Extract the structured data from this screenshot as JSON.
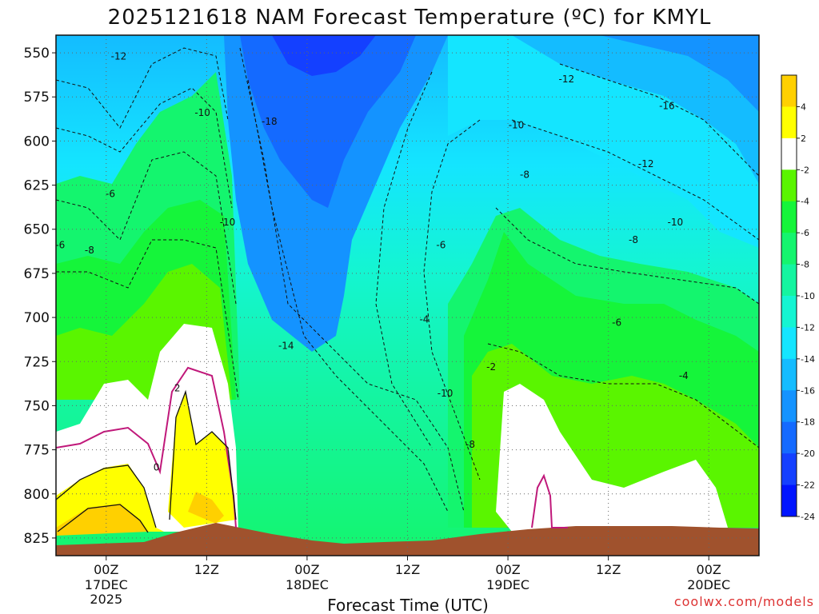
{
  "chart_data": {
    "type": "heatmap",
    "title": "2025121618 NAM Forecast Temperature (ºC) for KMYL",
    "xlabel": "Forecast Time (UTC)",
    "ylabel": "",
    "credit": "coolwx.com/models",
    "y_axis": {
      "ticks": [
        "550",
        "575",
        "600",
        "625",
        "650",
        "675",
        "700",
        "725",
        "750",
        "775",
        "800",
        "825"
      ],
      "range": [
        540,
        835
      ],
      "inverted": true
    },
    "x_axis": {
      "ticks": [
        {
          "label": "00Z",
          "sub1": "17DEC",
          "sub2": "2025"
        },
        {
          "label": "12Z",
          "sub1": "",
          "sub2": ""
        },
        {
          "label": "00Z",
          "sub1": "18DEC",
          "sub2": ""
        },
        {
          "label": "12Z",
          "sub1": "",
          "sub2": ""
        },
        {
          "label": "00Z",
          "sub1": "19DEC",
          "sub2": ""
        },
        {
          "label": "12Z",
          "sub1": "",
          "sub2": ""
        },
        {
          "label": "00Z",
          "sub1": "20DEC",
          "sub2": ""
        }
      ],
      "range_hours": [
        -6,
        78
      ]
    },
    "grid": true,
    "colorbar": {
      "labels": [
        "4",
        "2",
        "-2",
        "-4",
        "-6",
        "-8",
        "-10",
        "-12",
        "-14",
        "-16",
        "-18",
        "-20",
        "-22",
        "-24"
      ],
      "colors": [
        "#ffd000",
        "#ffff00",
        "#ffffff",
        "#5af500",
        "#15f53a",
        "#14f56e",
        "#14f5a0",
        "#14f5d2",
        "#14e5ff",
        "#14bcff",
        "#1493ff",
        "#146aff",
        "#1440ff",
        "#0014ff"
      ]
    },
    "contour_labels": [
      {
        "text": "-12",
        "h": 1.5,
        "p": 552
      },
      {
        "text": "-10",
        "h": 11.5,
        "p": 584
      },
      {
        "text": "-18",
        "h": 19.5,
        "p": 589
      },
      {
        "text": "-12",
        "h": 55,
        "p": 565
      },
      {
        "text": "-16",
        "h": 67,
        "p": 580
      },
      {
        "text": "-10",
        "h": 49,
        "p": 591
      },
      {
        "text": "-8",
        "h": 50,
        "p": 619
      },
      {
        "text": "-12",
        "h": 64.5,
        "p": 613
      },
      {
        "text": "-6",
        "h": 0.5,
        "p": 630
      },
      {
        "text": "-10",
        "h": 14.5,
        "p": 646
      },
      {
        "text": "-10",
        "h": 68,
        "p": 646
      },
      {
        "text": "-6",
        "h": -5.5,
        "p": 659
      },
      {
        "text": "-8",
        "h": -2,
        "p": 662
      },
      {
        "text": "-6",
        "h": 40,
        "p": 659
      },
      {
        "text": "-8",
        "h": 63,
        "p": 656
      },
      {
        "text": "-6",
        "h": 61,
        "p": 703
      },
      {
        "text": "-4",
        "h": 38,
        "p": 701
      },
      {
        "text": "-14",
        "h": 21.5,
        "p": 716
      },
      {
        "text": "-2",
        "h": 46,
        "p": 728
      },
      {
        "text": "-4",
        "h": 69,
        "p": 733
      },
      {
        "text": "-10",
        "h": 40.5,
        "p": 743
      },
      {
        "text": "2",
        "h": 8.5,
        "p": 740
      },
      {
        "text": "-8",
        "h": 43.5,
        "p": 772
      },
      {
        "text": "0",
        "h": 6,
        "p": 785
      }
    ],
    "notes": "Filled temperature contours by pressure level (hPa) versus forecast time, with dashed isotherms every 2 ºC and a brown terrain mask near 825 hPa."
  }
}
